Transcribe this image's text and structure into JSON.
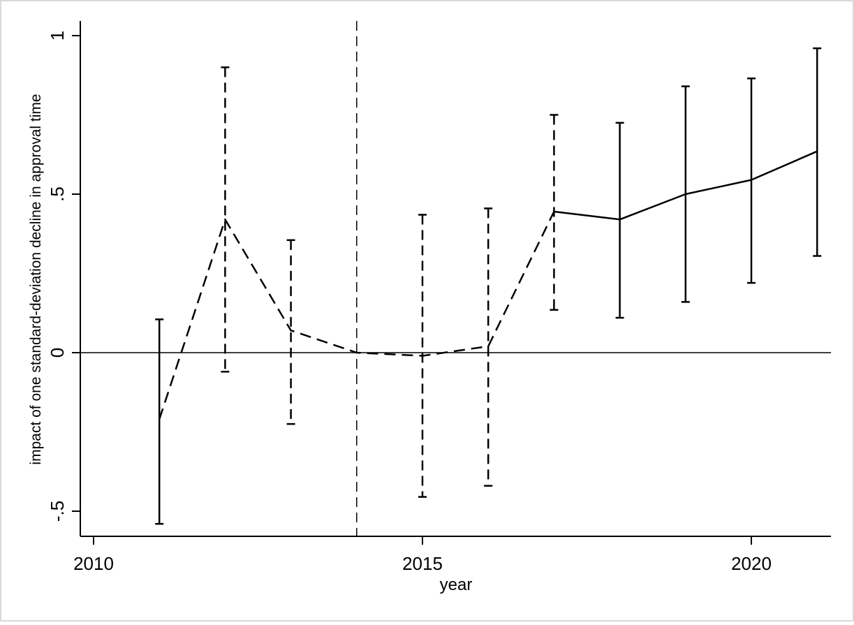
{
  "chart_data": {
    "type": "line",
    "title": "",
    "xlabel": "year",
    "ylabel": "impact of one standard-deviation decline in approval time",
    "xlim": [
      2009.8,
      2021.2
    ],
    "ylim": [
      -0.58,
      1.05
    ],
    "x_ticks": [
      2010,
      2015,
      2020
    ],
    "x_tick_labels": [
      "2010",
      "2015",
      "2020"
    ],
    "y_ticks": [
      -0.5,
      0,
      0.5,
      1
    ],
    "y_tick_labels": [
      "-.5",
      "0",
      ".5",
      "1"
    ],
    "reference_lines": {
      "horizontal_y": 0,
      "vertical_x": 2014
    },
    "grid": false,
    "legend": "none",
    "series": [
      {
        "line_style": "dashed",
        "points": [
          {
            "x": 2011,
            "y": -0.21,
            "lo": -0.54,
            "hi": 0.105
          },
          {
            "x": 2012,
            "y": 0.42,
            "lo": -0.06,
            "hi": 0.9
          },
          {
            "x": 2013,
            "y": 0.07,
            "lo": -0.225,
            "hi": 0.355
          },
          {
            "x": 2014,
            "y": 0.0
          },
          {
            "x": 2015,
            "y": -0.01,
            "lo": -0.455,
            "hi": 0.435
          },
          {
            "x": 2016,
            "y": 0.02,
            "lo": -0.42,
            "hi": 0.455
          },
          {
            "x": 2017,
            "y": 0.445,
            "lo": 0.135,
            "hi": 0.75
          }
        ]
      },
      {
        "line_style": "solid",
        "points": [
          {
            "x": 2017,
            "y": 0.445
          },
          {
            "x": 2018,
            "y": 0.42,
            "lo": 0.11,
            "hi": 0.725
          },
          {
            "x": 2019,
            "y": 0.5,
            "lo": 0.16,
            "hi": 0.84
          },
          {
            "x": 2020,
            "y": 0.545,
            "lo": 0.22,
            "hi": 0.865
          },
          {
            "x": 2021,
            "y": 0.635,
            "lo": 0.305,
            "hi": 0.96
          }
        ]
      }
    ],
    "error_bars": [
      {
        "x": 2011,
        "lo": -0.54,
        "hi": 0.105,
        "line_style": "solid"
      },
      {
        "x": 2012,
        "lo": -0.06,
        "hi": 0.9,
        "line_style": "dashed"
      },
      {
        "x": 2013,
        "lo": -0.225,
        "hi": 0.355,
        "line_style": "dashed"
      },
      {
        "x": 2015,
        "lo": -0.455,
        "hi": 0.435,
        "line_style": "dashed"
      },
      {
        "x": 2016,
        "lo": -0.42,
        "hi": 0.455,
        "line_style": "dashed"
      },
      {
        "x": 2017,
        "lo": 0.135,
        "hi": 0.75,
        "line_style": "dashed"
      },
      {
        "x": 2018,
        "lo": 0.11,
        "hi": 0.725,
        "line_style": "solid"
      },
      {
        "x": 2019,
        "lo": 0.16,
        "hi": 0.84,
        "line_style": "solid"
      },
      {
        "x": 2020,
        "lo": 0.22,
        "hi": 0.865,
        "line_style": "solid"
      },
      {
        "x": 2021,
        "lo": 0.305,
        "hi": 0.96,
        "line_style": "solid"
      }
    ],
    "colors": {
      "line": "#000000",
      "background": "#ffffff",
      "frame": "#d9d9d9"
    }
  }
}
